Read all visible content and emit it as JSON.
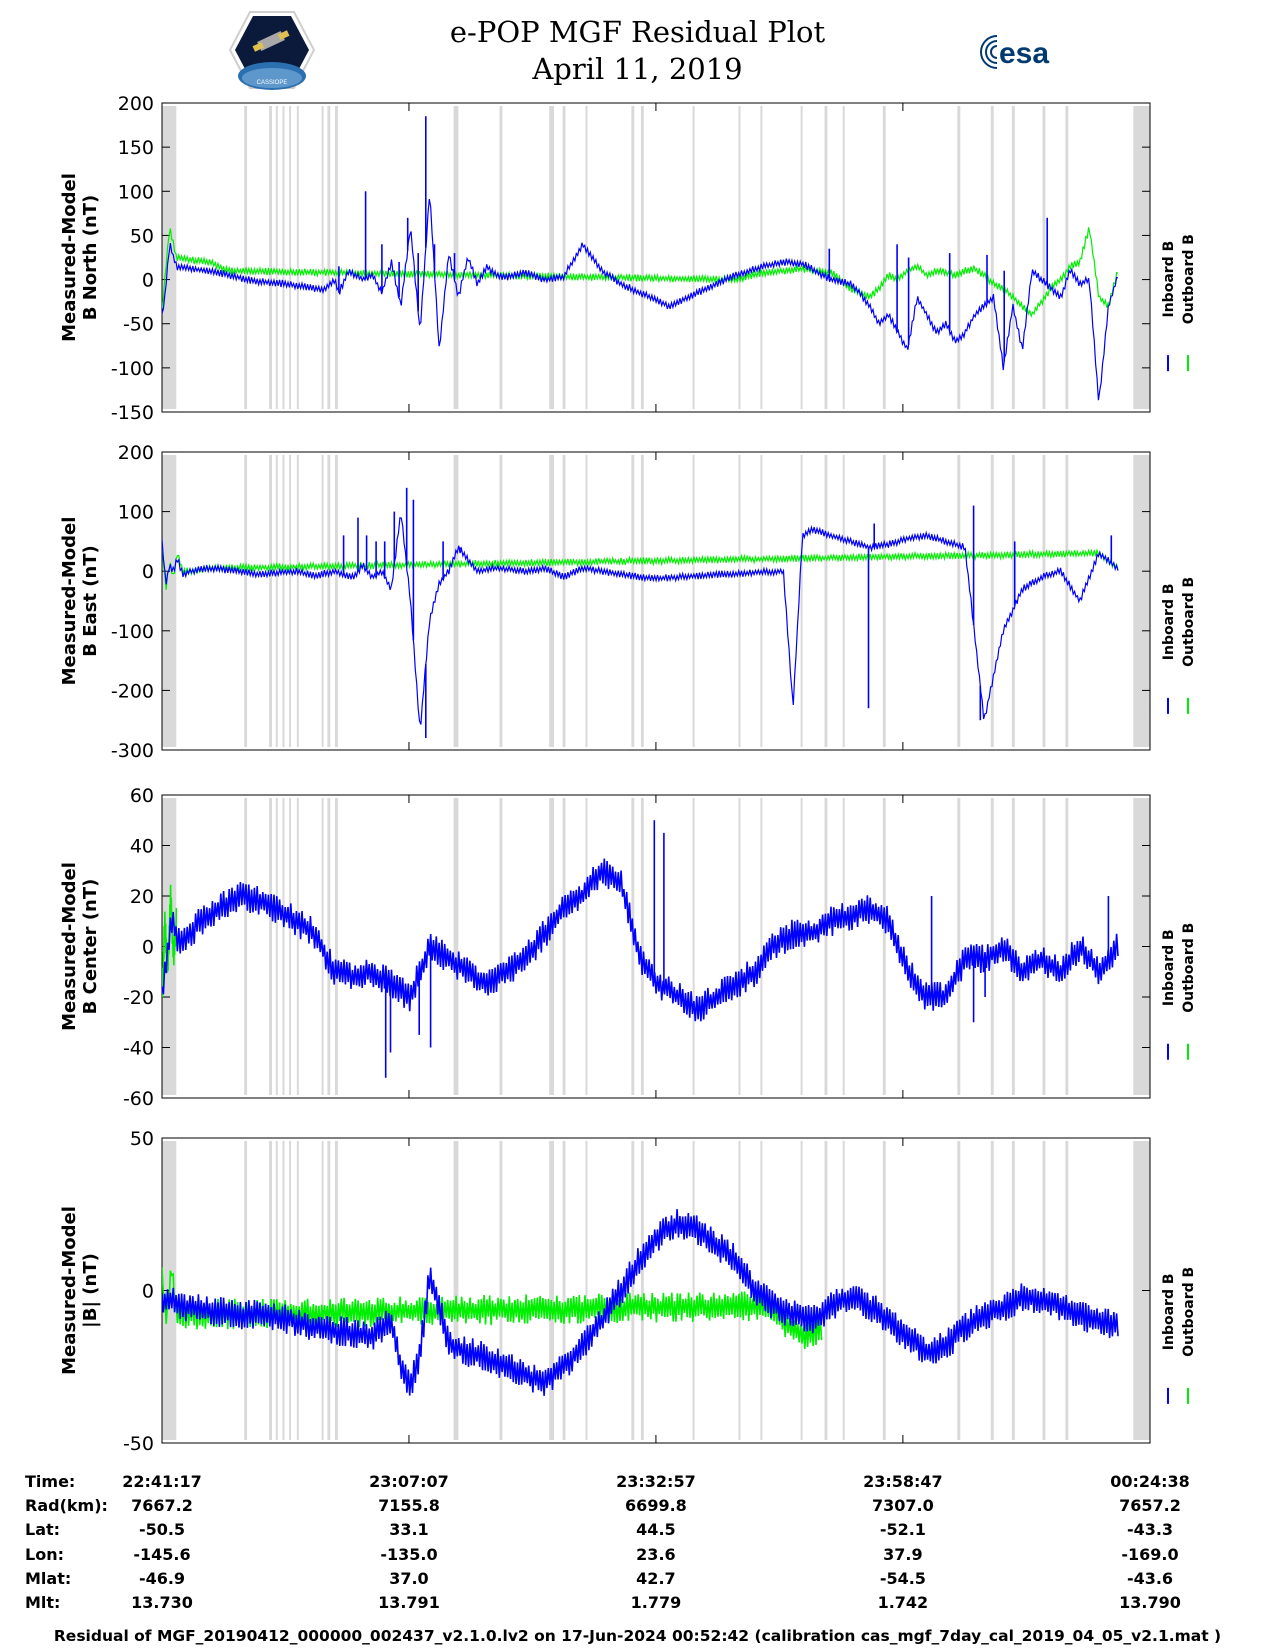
{
  "header": {
    "title_line1": "e-POP MGF Residual Plot",
    "title_line2": "April 11, 2019",
    "left_logo_text": "CASSIOPE",
    "right_logo_text": "esa"
  },
  "colors": {
    "inboard": "#0000ff",
    "outboard": "#00ee00",
    "gap_shading": "#d9d9d9"
  },
  "chart_data": [
    {
      "type": "line",
      "ylabel": [
        "Measured-Model",
        "B North (nT)"
      ],
      "ylim": [
        -150,
        200
      ],
      "yticks": [
        200,
        150,
        100,
        50,
        0,
        -50,
        -100,
        -150
      ],
      "legend": [
        "Inboard B",
        "Outboard B"
      ],
      "series": [
        {
          "name": "Inboard B",
          "x": [
            0,
            0.3,
            0.8,
            1.5,
            3,
            5,
            7,
            9,
            11,
            13,
            15,
            17,
            18,
            18.5,
            19.5,
            21,
            22,
            23,
            24,
            25,
            26,
            27,
            28,
            29,
            30,
            31,
            32,
            33,
            34,
            35,
            36,
            38,
            40,
            42,
            44,
            46,
            48,
            49,
            51,
            53,
            55,
            57,
            60,
            63,
            65,
            67,
            70,
            72,
            73,
            74,
            75,
            76,
            77,
            78,
            79,
            80,
            81,
            82,
            83,
            84,
            85,
            86,
            87,
            88,
            89,
            90,
            91,
            92,
            93,
            94,
            95,
            96,
            97,
            98,
            99,
            100
          ],
          "y": [
            -40,
            -20,
            40,
            15,
            12,
            10,
            5,
            0,
            -3,
            -5,
            -8,
            -12,
            0,
            -15,
            10,
            0,
            5,
            -15,
            20,
            -30,
            60,
            -60,
            100,
            -80,
            30,
            -20,
            25,
            -5,
            15,
            5,
            3,
            8,
            0,
            3,
            40,
            10,
            -5,
            -10,
            -20,
            -30,
            -20,
            -10,
            5,
            15,
            20,
            18,
            0,
            -5,
            -15,
            -30,
            -50,
            -40,
            -60,
            -80,
            -20,
            -40,
            -60,
            -50,
            -70,
            -60,
            -40,
            -30,
            -20,
            -100,
            -30,
            -80,
            10,
            0,
            -10,
            -20,
            10,
            -5,
            0,
            -140,
            -30,
            5
          ]
        },
        {
          "name": "Outboard B",
          "x": [
            0,
            0.8,
            1.5,
            3,
            5,
            7,
            60,
            63,
            65,
            67,
            70,
            72,
            73,
            74,
            75,
            76,
            77,
            78,
            79,
            80,
            81,
            82,
            83,
            84,
            85,
            86,
            87,
            88,
            89,
            90,
            91,
            92,
            93,
            94,
            95,
            96,
            97,
            98,
            99,
            100
          ],
          "y": [
            -35,
            60,
            25,
            22,
            20,
            10,
            0,
            8,
            10,
            12,
            8,
            -10,
            -15,
            -20,
            -10,
            5,
            0,
            10,
            15,
            5,
            10,
            8,
            5,
            10,
            12,
            5,
            -5,
            -10,
            -20,
            -30,
            -40,
            -25,
            -10,
            0,
            15,
            20,
            60,
            -20,
            -30,
            10
          ]
        }
      ],
      "spikes_time_min": [
        18.5,
        21.3,
        23,
        24.8,
        25.7,
        26.8,
        27.6,
        28.5,
        30.6,
        69.8,
        76.9,
        78.1,
        82.4,
        86.3,
        88.1,
        92.6
      ],
      "spikes_value": [
        15,
        100,
        40,
        20,
        70,
        30,
        185,
        40,
        30,
        35,
        40,
        25,
        30,
        28,
        10,
        70
      ]
    },
    {
      "type": "line",
      "ylabel": [
        "Measured-Model",
        "B East (nT)"
      ],
      "ylim": [
        -300,
        200
      ],
      "yticks": [
        200,
        100,
        0,
        -100,
        -200,
        -300
      ],
      "legend": [
        "Inboard B",
        "Outboard B"
      ],
      "series": [
        {
          "name": "Inboard B",
          "x": [
            0,
            0.4,
            0.8,
            1.2,
            1.6,
            2.2,
            3,
            5,
            8,
            10,
            12,
            14,
            16,
            18,
            19,
            20,
            21,
            22,
            23,
            24,
            25,
            26,
            27,
            28,
            29,
            30,
            31,
            33,
            35,
            38,
            40,
            42,
            44,
            46,
            48,
            50,
            52,
            54,
            56,
            58,
            60,
            62,
            65,
            66,
            67,
            68,
            70,
            72,
            74,
            76,
            78,
            80,
            82,
            84,
            86,
            88,
            90,
            92,
            94,
            96,
            98,
            100
          ],
          "y": [
            50,
            -20,
            10,
            0,
            20,
            -5,
            0,
            5,
            0,
            -5,
            -3,
            0,
            -8,
            0,
            -5,
            -10,
            10,
            -10,
            0,
            -30,
            100,
            -50,
            -270,
            -80,
            -20,
            0,
            40,
            0,
            5,
            0,
            5,
            -10,
            5,
            0,
            -5,
            -10,
            -12,
            -10,
            -8,
            -5,
            -5,
            -2,
            0,
            -230,
            60,
            70,
            60,
            50,
            40,
            45,
            55,
            60,
            50,
            40,
            -250,
            -100,
            -30,
            -10,
            0,
            -50,
            30,
            5
          ]
        },
        {
          "name": "Outboard B",
          "x": [
            0,
            0.4,
            0.8,
            1.2,
            1.6,
            2.2,
            3,
            5,
            98,
            100
          ],
          "y": [
            45,
            -30,
            15,
            -10,
            30,
            0,
            0,
            5,
            30,
            5
          ]
        }
      ],
      "spikes_time_min": [
        19,
        20.5,
        21.4,
        22.4,
        23.3,
        24.3,
        25.6,
        26.3,
        27.6,
        29.4,
        31.2,
        73.9,
        74.5,
        84.9,
        85.6,
        89.2,
        99.3
      ],
      "spikes_value": [
        60,
        90,
        60,
        50,
        50,
        100,
        140,
        120,
        -280,
        50,
        40,
        -230,
        80,
        110,
        -250,
        50,
        60
      ]
    },
    {
      "type": "line",
      "ylabel": [
        "Measured-Model",
        "B Center (nT)"
      ],
      "ylim": [
        -60,
        60
      ],
      "yticks": [
        60,
        40,
        20,
        0,
        -20,
        -40,
        -60
      ],
      "legend": [
        "Inboard B",
        "Outboard B"
      ],
      "series": [
        {
          "name": "Inboard B",
          "x": [
            0,
            1,
            2,
            4,
            6,
            8,
            10,
            12,
            14,
            16,
            18,
            20,
            22,
            24,
            26,
            28,
            30,
            32,
            34,
            36,
            38,
            40,
            42,
            44,
            46,
            48,
            50,
            52,
            54,
            56,
            58,
            60,
            62,
            64,
            66,
            68,
            70,
            72,
            74,
            76,
            78,
            80,
            82,
            84,
            86,
            88,
            90,
            92,
            94,
            96,
            98,
            100
          ],
          "y": [
            -20,
            10,
            0,
            10,
            15,
            20,
            18,
            15,
            10,
            5,
            -10,
            -12,
            -10,
            -15,
            -20,
            0,
            -5,
            -10,
            -15,
            -10,
            -5,
            5,
            15,
            20,
            30,
            25,
            -5,
            -15,
            -20,
            -25,
            -20,
            -15,
            -10,
            0,
            5,
            5,
            10,
            12,
            15,
            10,
            -10,
            -20,
            -20,
            -5,
            -5,
            0,
            -10,
            -5,
            -10,
            0,
            -10,
            0
          ]
        },
        {
          "name": "Outboard B",
          "x": [
            0,
            0.3,
            0.6,
            0.9,
            1.2,
            1.5
          ],
          "y": [
            -20,
            10,
            -10,
            20,
            -5,
            10
          ]
        }
      ],
      "band_half_width": 6,
      "spikes_time_min": [
        23.4,
        23.9,
        28.1,
        26.9,
        51.5,
        52.5,
        80.5,
        84.9,
        86.1,
        99.0
      ],
      "spikes_value": [
        -52,
        -42,
        -40,
        -35,
        50,
        45,
        20,
        -30,
        -20,
        20
      ]
    },
    {
      "type": "line",
      "ylabel": [
        "Measured-Model",
        "|B| (nT)"
      ],
      "ylim": [
        -50,
        50
      ],
      "yticks": [
        50,
        0,
        -50
      ],
      "legend": [
        "Inboard B",
        "Outboard B"
      ],
      "series": [
        {
          "name": "Inboard B",
          "x": [
            0,
            1,
            2,
            4,
            6,
            8,
            10,
            12,
            14,
            16,
            18,
            20,
            22,
            24,
            25,
            26,
            27,
            28,
            29,
            30,
            32,
            34,
            36,
            38,
            40,
            42,
            44,
            46,
            48,
            50,
            52,
            54,
            56,
            58,
            60,
            62,
            64,
            66,
            68,
            70,
            72,
            74,
            76,
            78,
            80,
            82,
            84,
            86,
            88,
            90,
            92,
            94,
            96,
            98,
            100
          ],
          "y": [
            -5,
            -3,
            -5,
            -6,
            -7,
            -8,
            -8,
            -9,
            -10,
            -12,
            -13,
            -14,
            -15,
            -10,
            -25,
            -32,
            -20,
            5,
            -5,
            -18,
            -20,
            -22,
            -25,
            -28,
            -30,
            -25,
            -18,
            -10,
            0,
            10,
            18,
            22,
            20,
            15,
            10,
            0,
            -5,
            -8,
            -10,
            -5,
            -2,
            -5,
            -10,
            -15,
            -20,
            -18,
            -12,
            -8,
            -6,
            -2,
            -3,
            -5,
            -8,
            -10,
            -12
          ]
        },
        {
          "name": "Outboard B",
          "x": [
            0,
            0.5,
            1,
            1.5,
            63,
            65,
            67,
            69
          ],
          "y": [
            5,
            -10,
            8,
            -8,
            -5,
            -10,
            -15,
            -12
          ]
        }
      ],
      "band_half_width": 5
    }
  ],
  "time_axis": {
    "tick_labels": [
      "22:41:17",
      "23:07:07",
      "23:32:57",
      "23:58:47",
      "00:24:38"
    ],
    "tick_minutes": [
      0,
      25.833,
      51.667,
      77.5,
      103.35
    ]
  },
  "gap_intervals_min": [
    [
      0,
      1.5
    ],
    [
      8.6,
      8.9
    ],
    [
      11.2,
      11.5
    ],
    [
      11.9,
      12.1
    ],
    [
      12.6,
      12.8
    ],
    [
      13.3,
      13.5
    ],
    [
      14.1,
      14.3
    ],
    [
      16.7,
      16.9
    ],
    [
      17.3,
      17.6
    ],
    [
      18.1,
      18.4
    ],
    [
      30.5,
      31
    ],
    [
      35.3,
      35.6
    ],
    [
      40.5,
      41
    ],
    [
      41.9,
      42.2
    ],
    [
      44.3,
      44.5
    ],
    [
      49.1,
      49.4
    ],
    [
      50.1,
      50.4
    ],
    [
      55.5,
      55.7
    ],
    [
      60.3,
      60.5
    ],
    [
      62.6,
      62.8
    ],
    [
      66.8,
      67
    ],
    [
      69.3,
      69.6
    ],
    [
      71.2,
      71.4
    ],
    [
      75.4,
      75.7
    ],
    [
      83.2,
      83.5
    ],
    [
      86.7,
      87
    ],
    [
      88.9,
      89.2
    ],
    [
      92.1,
      92.4
    ],
    [
      94.5,
      94.8
    ],
    [
      101.6,
      103.35
    ]
  ],
  "orbit_table": {
    "labels": [
      "Time:",
      "Rad(km):",
      "Lat:",
      "Lon:",
      "Mlat:",
      "Mlt:"
    ],
    "columns": [
      [
        "22:41:17",
        "7667.2",
        "-50.5",
        "-145.6",
        "-46.9",
        "13.730"
      ],
      [
        "23:07:07",
        "7155.8",
        "33.1",
        "-135.0",
        "37.0",
        "13.791"
      ],
      [
        "23:32:57",
        "6699.8",
        "44.5",
        "23.6",
        "42.7",
        "1.779"
      ],
      [
        "23:58:47",
        "7307.0",
        "-52.1",
        "37.9",
        "-54.5",
        "1.742"
      ],
      [
        "00:24:38",
        "7657.2",
        "-43.3",
        "-169.0",
        "-43.6",
        "13.790"
      ]
    ]
  },
  "footer": {
    "text": "Residual of MGF_20190412_000000_002437_v2.1.0.lv2 on 17-Jun-2024 00:52:42 (calibration cas_mgf_7day_cal_2019_04_05_v2.1.mat )"
  }
}
